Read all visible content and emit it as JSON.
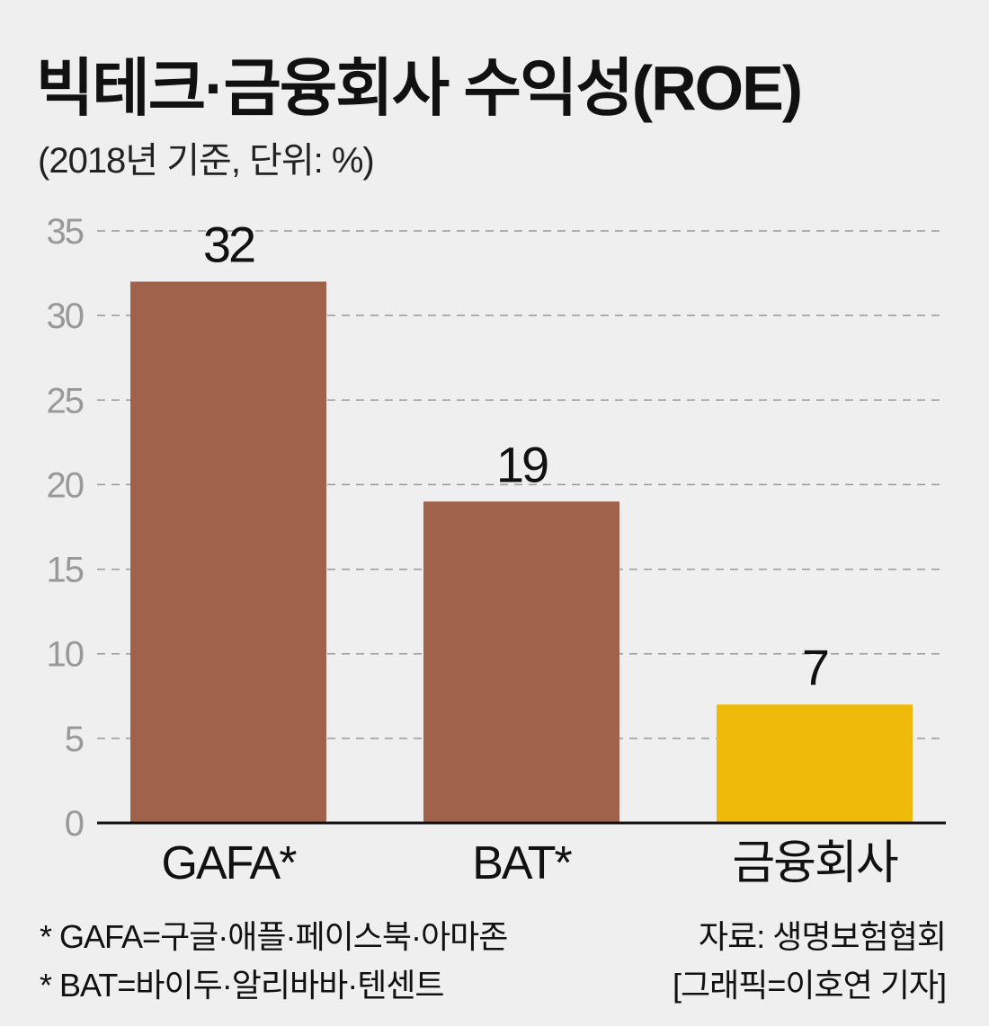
{
  "title": "빅테크·금융회사 수익성(ROE)",
  "subtitle": "(2018년 기준, 단위: %)",
  "colors": {
    "background": "#efefef",
    "bigtech": "#a0624a",
    "finance": "#efba0a",
    "grid": "#999999"
  },
  "chart_data": {
    "type": "bar",
    "categories": [
      "GAFA*",
      "BAT*",
      "금융회사"
    ],
    "values": [
      32,
      19,
      7
    ],
    "data_labels": [
      "32",
      "19",
      "7"
    ],
    "bar_colors": [
      "#a0624a",
      "#a0624a",
      "#efba0a"
    ],
    "ylim": [
      0,
      35
    ],
    "yticks": [
      0,
      5,
      10,
      15,
      20,
      25,
      30,
      35
    ],
    "grid": "dashed horizontal",
    "xlabel": "",
    "ylabel": ""
  },
  "footnotes": {
    "gafa": "* GAFA=구글·애플·페이스북·아마존",
    "bat": "* BAT=바이두·알리바바·텐센트",
    "source": "자료: 생명보험협회",
    "credit": "[그래픽=이호연 기자]"
  }
}
